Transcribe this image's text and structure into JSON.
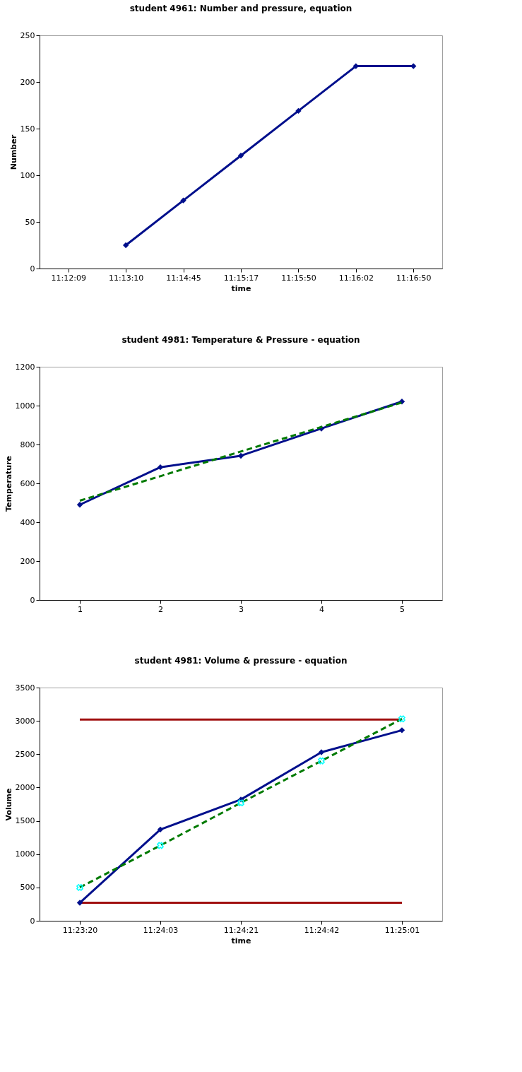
{
  "chart_data": [
    {
      "type": "line",
      "title": "student 4961: Number and pressure, equation",
      "xlabel": "time",
      "ylabel": "Number",
      "categories": [
        "11:12:09",
        "11:13:10",
        "11:14:45",
        "11:15:17",
        "11:15:50",
        "11:16:02",
        "11:16:50"
      ],
      "ylim": [
        0,
        250
      ],
      "yticks": [
        0,
        50,
        100,
        150,
        200,
        250
      ],
      "grid": false,
      "legend": false,
      "series": [
        {
          "type": "line",
          "color": "#000f8c",
          "marker": "diamond",
          "line_style": "solid",
          "values": [
            null,
            25,
            73,
            121,
            169,
            217,
            217
          ]
        }
      ]
    },
    {
      "type": "line",
      "title": "student 4981: Temperature & Pressure - equation",
      "ylabel": "Temperature",
      "categories": [
        "1",
        "2",
        "3",
        "4",
        "5"
      ],
      "ylim": [
        0,
        1200
      ],
      "yticks": [
        0,
        200,
        400,
        600,
        800,
        1000,
        1200
      ],
      "grid": false,
      "legend": false,
      "series": [
        {
          "type": "line",
          "color": "#000f8c",
          "marker": "diamond",
          "line_style": "solid",
          "values": [
            490,
            683,
            742,
            882,
            1021
          ]
        },
        {
          "type": "line",
          "color": "#007a00",
          "marker": "none",
          "line_style": "dashed",
          "values": [
            511,
            637,
            764,
            890,
            1016
          ]
        }
      ]
    },
    {
      "type": "line",
      "title": "student 4981: Volume & pressure - equation",
      "xlabel": "time",
      "ylabel": "Volume",
      "categories": [
        "11:23:20",
        "11:24:03",
        "11:24:21",
        "11:24:42",
        "11:25:01"
      ],
      "ylim": [
        0,
        3500
      ],
      "yticks": [
        0,
        500,
        1000,
        1500,
        2000,
        2500,
        3000,
        3500
      ],
      "grid": false,
      "legend": false,
      "series": [
        {
          "type": "line",
          "color": "#a01010",
          "marker": "none",
          "line_style": "solid",
          "values": [
            3020,
            3020,
            3020,
            3020,
            3020
          ]
        },
        {
          "type": "line",
          "color": "#a01010",
          "marker": "none",
          "line_style": "solid",
          "values": [
            270,
            270,
            270,
            270,
            270
          ]
        },
        {
          "type": "line",
          "color": "#000f8c",
          "marker": "diamond",
          "line_style": "solid",
          "values": [
            270,
            1370,
            1820,
            2530,
            2860
          ]
        },
        {
          "type": "line",
          "color": "#007a00",
          "marker": "cross",
          "line_style": "dashed",
          "values": [
            500,
            1130,
            1770,
            2400,
            3030
          ]
        }
      ]
    }
  ]
}
